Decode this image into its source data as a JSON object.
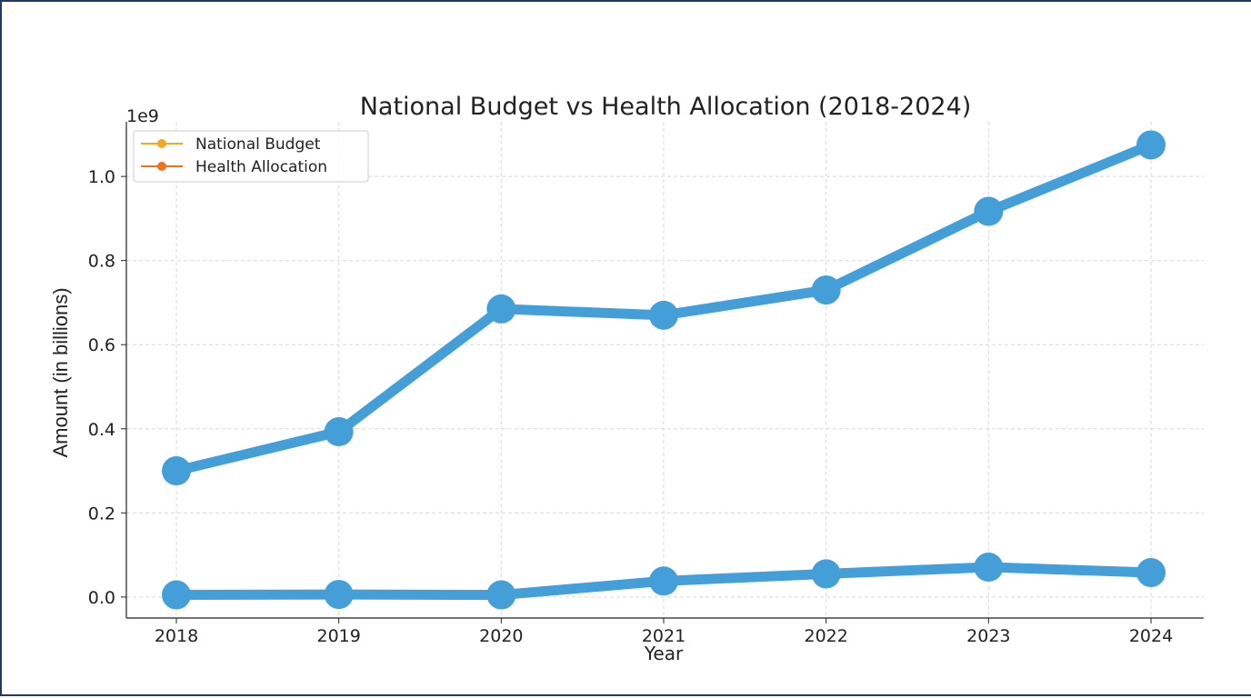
{
  "chart_data": {
    "type": "line",
    "title": "National Budget vs Health Allocation (2018-2024)",
    "xlabel": "Year",
    "ylabel": "Amount (in billions)",
    "offset_text": "1e9",
    "categories": [
      "2018",
      "2019",
      "2020",
      "2021",
      "2022",
      "2023",
      "2024"
    ],
    "y_ticks": [
      "0.0",
      "0.2",
      "0.4",
      "0.6",
      "0.8",
      "1.0"
    ],
    "ylim": [
      -0.05,
      1.13
    ],
    "grid": true,
    "legend_position": "top-left",
    "series": [
      {
        "name": "National Budget",
        "legend_color": "#f5a623",
        "line_color": "#449fd8",
        "values": [
          0.3,
          0.393,
          0.685,
          0.67,
          0.73,
          0.917,
          1.075
        ]
      },
      {
        "name": "Health Allocation",
        "legend_color": "#f07020",
        "line_color": "#449fd8",
        "values": [
          0.005,
          0.006,
          0.005,
          0.038,
          0.055,
          0.071,
          0.058
        ]
      }
    ]
  }
}
